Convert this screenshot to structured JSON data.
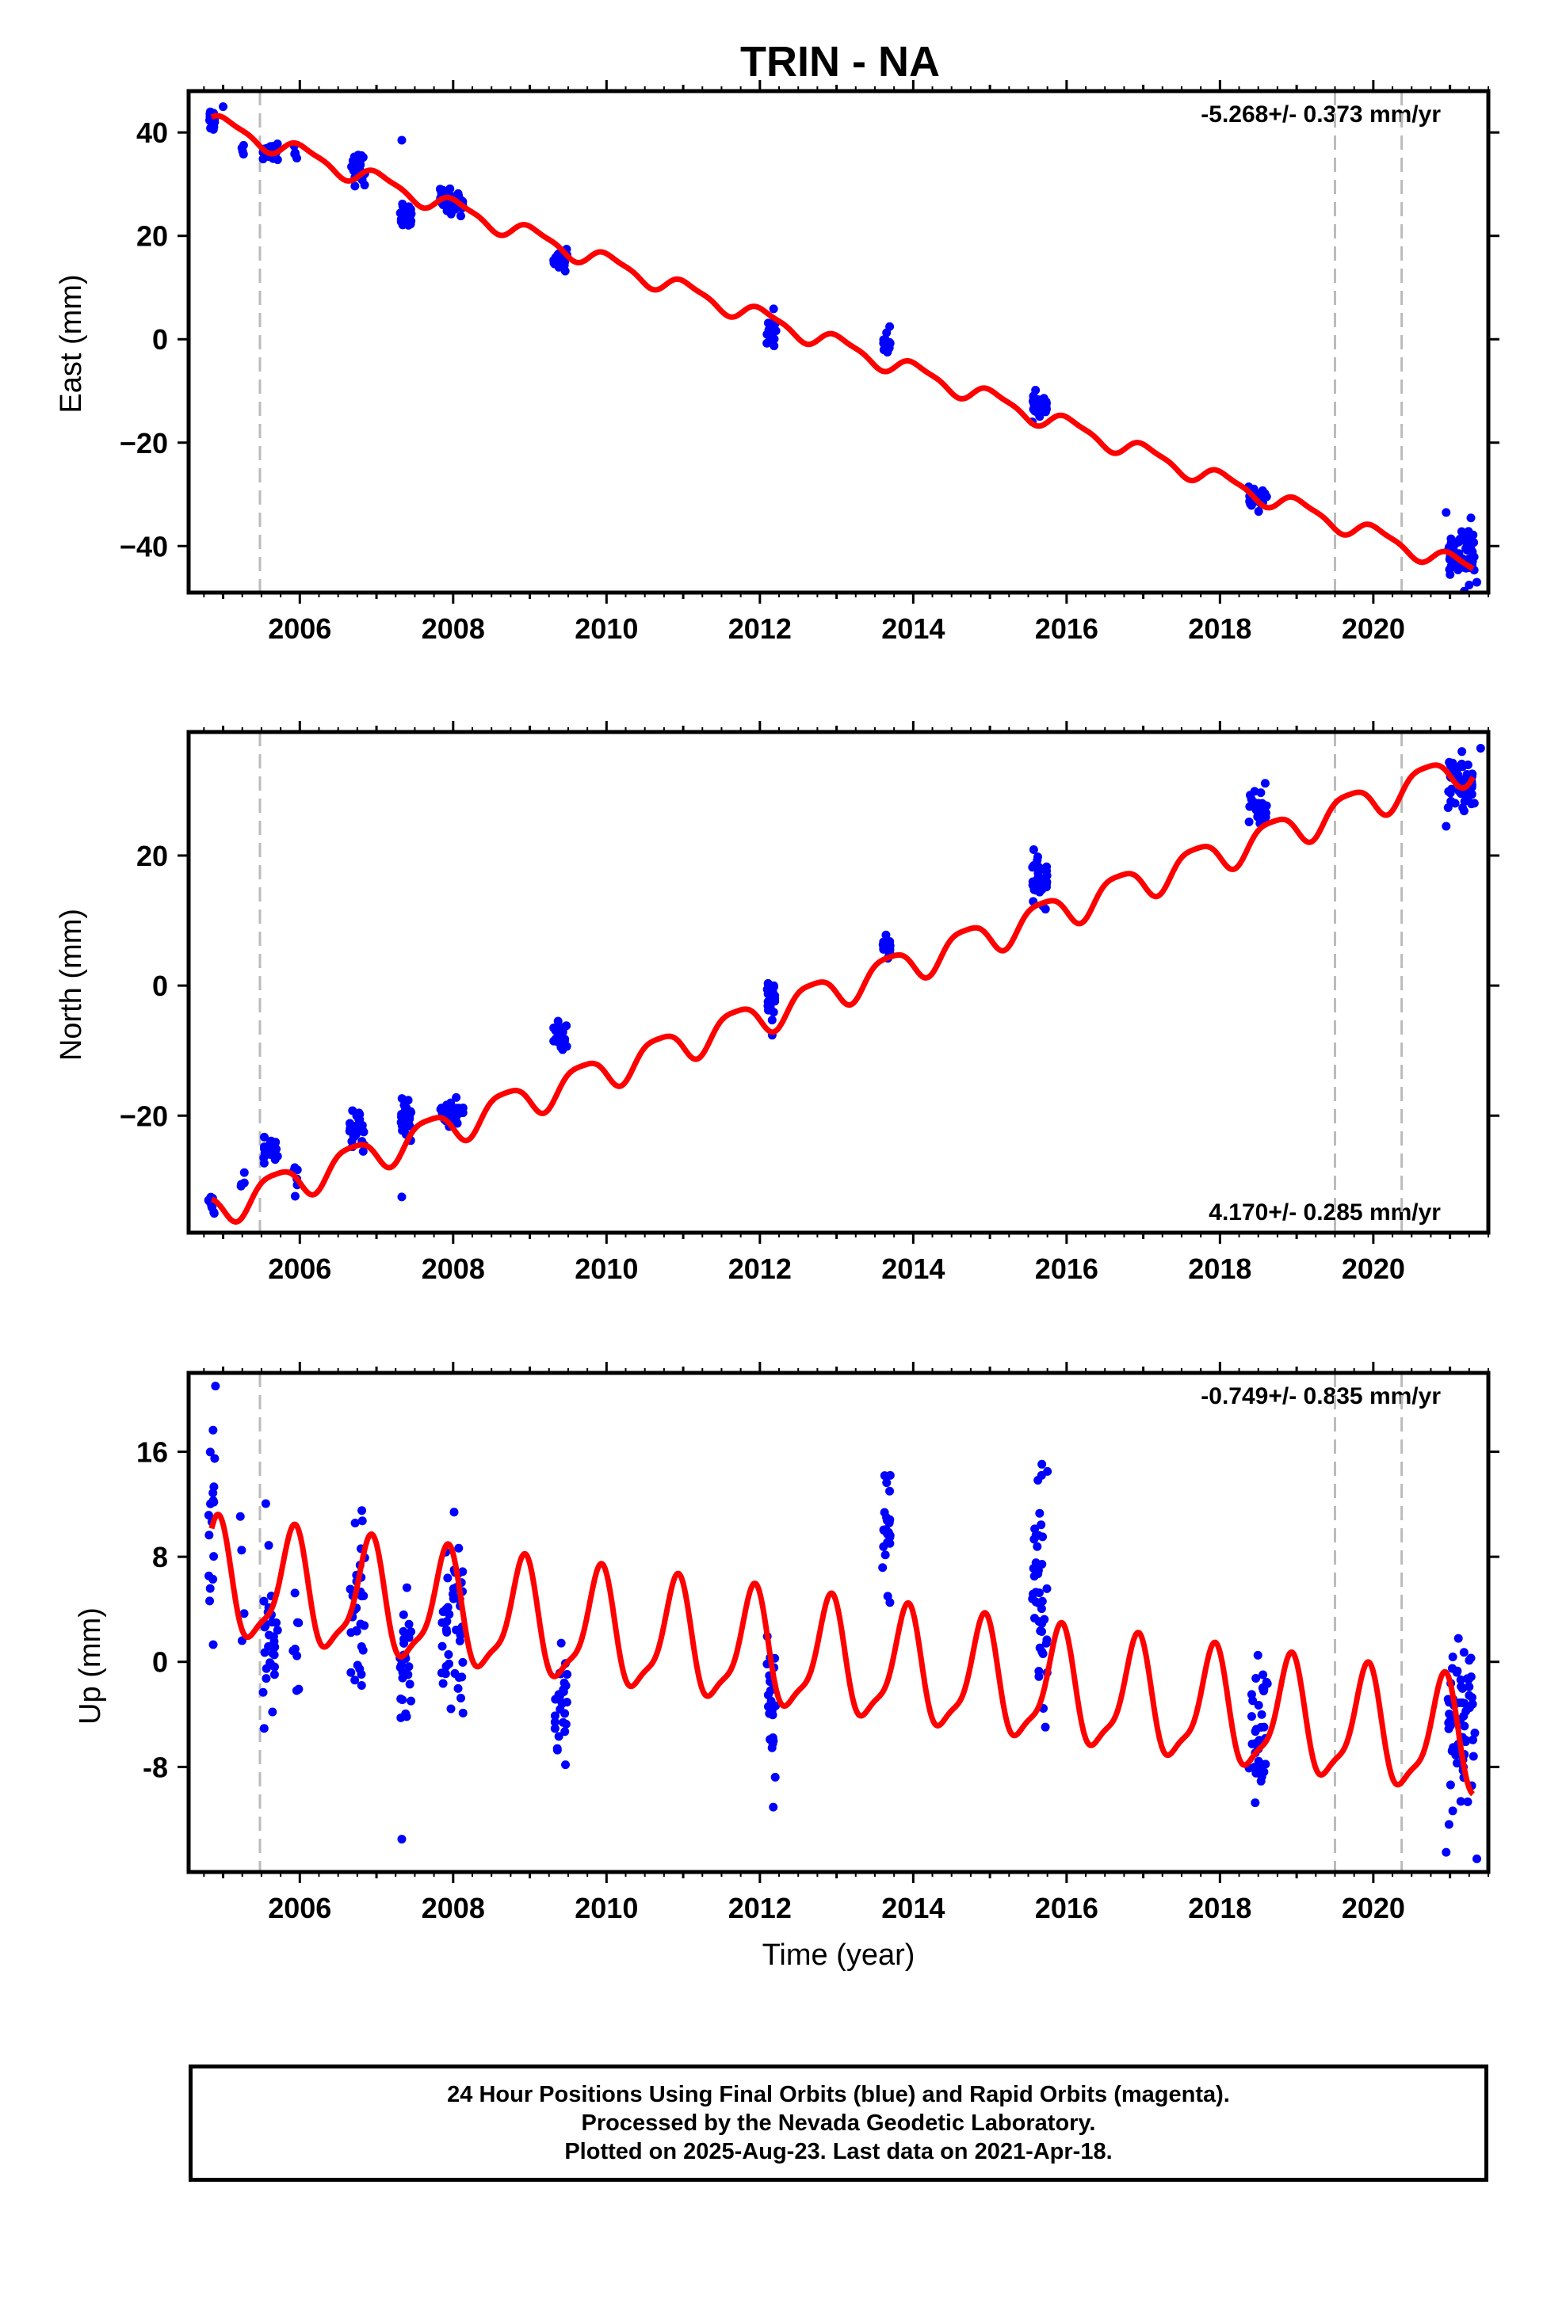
{
  "title": "TRIN - NA",
  "footer": {
    "line1": "24 Hour Positions Using Final Orbits (blue) and Rapid Orbits (magenta).",
    "line2": "Processed by the Nevada Geodetic Laboratory.",
    "line3": "Plotted on 2025-Aug-23. Last data on 2021-Apr-18."
  },
  "xlabel": "Time (year)",
  "colors": {
    "data": "#0000ff",
    "model": "#ff0000",
    "event_line": "#bbbbbb",
    "axes": "#000000"
  },
  "chart_data": [
    {
      "type": "scatter",
      "panel": "east",
      "ylabel": "East (mm)",
      "rate_label": "-5.268+/- 0.373 mm/yr",
      "xlim": [
        2004.55,
        2021.5
      ],
      "ylim": [
        -49,
        48
      ],
      "x_ticks": [
        2006,
        2008,
        2010,
        2012,
        2014,
        2016,
        2018,
        2020
      ],
      "x_tick_labels": [
        "2006",
        "2008",
        "2010",
        "2012",
        "2014",
        "2016",
        "2018",
        "2020"
      ],
      "y_ticks": [
        40,
        20,
        0,
        -20,
        -40
      ],
      "y_tick_labels": [
        "40",
        "20",
        "0",
        "−20",
        "−40"
      ],
      "event_lines": [
        2005.48,
        2019.5,
        2020.37
      ],
      "model": {
        "offset": 42.0,
        "t0": 2004.85,
        "rate": -5.268,
        "annual_amp": 1.7,
        "annual_phase": 0.3,
        "semiannual_amp": 0.5,
        "semiannual_phase": 1.1
      },
      "clusters": [
        {
          "t": 2004.85,
          "span": 0.08,
          "mean": 42.5,
          "sd": 1.2,
          "n": 14
        },
        {
          "t": 2005.25,
          "span": 0.05,
          "mean": 37.0,
          "sd": 0.8,
          "n": 4
        },
        {
          "t": 2005.62,
          "span": 0.2,
          "mean": 36.5,
          "sd": 1.0,
          "n": 26
        },
        {
          "t": 2005.95,
          "span": 0.06,
          "mean": 36.5,
          "sd": 0.8,
          "n": 5
        },
        {
          "t": 2006.75,
          "span": 0.2,
          "mean": 33.0,
          "sd": 1.4,
          "n": 30
        },
        {
          "t": 2007.38,
          "span": 0.15,
          "mean": 24.0,
          "sd": 1.3,
          "n": 26
        },
        {
          "t": 2007.98,
          "span": 0.3,
          "mean": 26.5,
          "sd": 1.2,
          "n": 42
        },
        {
          "t": 2009.4,
          "span": 0.18,
          "mean": 15.5,
          "sd": 1.0,
          "n": 26
        },
        {
          "t": 2012.15,
          "span": 0.12,
          "mean": 2.0,
          "sd": 1.8,
          "n": 22
        },
        {
          "t": 2013.65,
          "span": 0.1,
          "mean": -1.0,
          "sd": 1.2,
          "n": 16
        },
        {
          "t": 2015.65,
          "span": 0.2,
          "mean": -12.5,
          "sd": 1.0,
          "n": 40
        },
        {
          "t": 2018.5,
          "span": 0.25,
          "mean": -31.0,
          "sd": 0.9,
          "n": 34
        },
        {
          "t": 2021.15,
          "span": 0.35,
          "mean": -41.5,
          "sd": 2.5,
          "n": 60
        }
      ],
      "outliers": [
        {
          "x": 2005.0,
          "y": 45.0
        },
        {
          "x": 2007.33,
          "y": 38.5
        },
        {
          "x": 2020.95,
          "y": -33.5
        },
        {
          "x": 2021.35,
          "y": -47.0
        }
      ]
    },
    {
      "type": "scatter",
      "panel": "north",
      "ylabel": "North (mm)",
      "rate_label": "4.170+/- 0.285 mm/yr",
      "xlim": [
        2004.55,
        2021.5
      ],
      "ylim": [
        -38,
        39
      ],
      "x_ticks": [
        2006,
        2008,
        2010,
        2012,
        2014,
        2016,
        2018,
        2020
      ],
      "x_tick_labels": [
        "2006",
        "2008",
        "2010",
        "2012",
        "2014",
        "2016",
        "2018",
        "2020"
      ],
      "y_ticks": [
        20,
        0,
        -20
      ],
      "y_tick_labels": [
        "20",
        "0",
        "−20"
      ],
      "event_lines": [
        2005.48,
        2019.5,
        2020.37
      ],
      "model": {
        "offset": -34.5,
        "t0": 2004.85,
        "rate": 4.17,
        "annual_amp": 2.6,
        "annual_phase": 2.6,
        "semiannual_amp": 0.6,
        "semiannual_phase": 0.5
      },
      "clusters": [
        {
          "t": 2004.85,
          "span": 0.08,
          "mean": -34.0,
          "sd": 1.0,
          "n": 12
        },
        {
          "t": 2005.25,
          "span": 0.06,
          "mean": -30.0,
          "sd": 0.8,
          "n": 4
        },
        {
          "t": 2005.62,
          "span": 0.2,
          "mean": -25.5,
          "sd": 1.0,
          "n": 24
        },
        {
          "t": 2005.95,
          "span": 0.06,
          "mean": -29.5,
          "sd": 1.2,
          "n": 6
        },
        {
          "t": 2006.75,
          "span": 0.2,
          "mean": -22.5,
          "sd": 1.4,
          "n": 28
        },
        {
          "t": 2007.38,
          "span": 0.15,
          "mean": -20.5,
          "sd": 1.3,
          "n": 24
        },
        {
          "t": 2007.98,
          "span": 0.3,
          "mean": -19.5,
          "sd": 1.2,
          "n": 40
        },
        {
          "t": 2009.4,
          "span": 0.18,
          "mean": -8.0,
          "sd": 1.2,
          "n": 26
        },
        {
          "t": 2012.15,
          "span": 0.12,
          "mean": -2.5,
          "sd": 1.8,
          "n": 20
        },
        {
          "t": 2013.65,
          "span": 0.1,
          "mean": 6.0,
          "sd": 1.2,
          "n": 18
        },
        {
          "t": 2015.65,
          "span": 0.2,
          "mean": 16.0,
          "sd": 1.6,
          "n": 40
        },
        {
          "t": 2018.5,
          "span": 0.25,
          "mean": 27.5,
          "sd": 1.5,
          "n": 30
        },
        {
          "t": 2021.15,
          "span": 0.35,
          "mean": 31.0,
          "sd": 2.0,
          "n": 60
        }
      ],
      "outliers": [
        {
          "x": 2007.33,
          "y": -32.5
        },
        {
          "x": 2020.95,
          "y": 24.5
        },
        {
          "x": 2021.4,
          "y": 36.5
        }
      ]
    },
    {
      "type": "scatter",
      "panel": "up",
      "ylabel": "Up (mm)",
      "rate_label": "-0.749+/- 0.835 mm/yr",
      "xlim": [
        2004.55,
        2021.5
      ],
      "ylim": [
        -16,
        22
      ],
      "x_ticks": [
        2006,
        2008,
        2010,
        2012,
        2014,
        2016,
        2018,
        2020
      ],
      "x_tick_labels": [
        "2006",
        "2008",
        "2010",
        "2012",
        "2014",
        "2016",
        "2018",
        "2020"
      ],
      "y_ticks": [
        16,
        8,
        0,
        -8
      ],
      "y_tick_labels": [
        "16",
        "8",
        "0",
        "-8"
      ],
      "event_lines": [
        2005.48,
        2019.5,
        2020.37
      ],
      "model": {
        "offset": 6.0,
        "t0": 2004.85,
        "rate": -0.749,
        "annual_amp": 4.2,
        "annual_phase": 1.2,
        "semiannual_amp": 1.2,
        "semiannual_phase": 0.2
      },
      "clusters": [
        {
          "t": 2004.85,
          "span": 0.08,
          "mean": 11.0,
          "sd": 4.0,
          "n": 18
        },
        {
          "t": 2005.25,
          "span": 0.08,
          "mean": 5.0,
          "sd": 4.0,
          "n": 4
        },
        {
          "t": 2005.62,
          "span": 0.2,
          "mean": 1.0,
          "sd": 3.5,
          "n": 30
        },
        {
          "t": 2005.95,
          "span": 0.08,
          "mean": 0.0,
          "sd": 3.5,
          "n": 8
        },
        {
          "t": 2006.75,
          "span": 0.2,
          "mean": 4.5,
          "sd": 3.0,
          "n": 32
        },
        {
          "t": 2007.38,
          "span": 0.15,
          "mean": -1.0,
          "sd": 3.0,
          "n": 26
        },
        {
          "t": 2007.98,
          "span": 0.3,
          "mean": 3.0,
          "sd": 3.3,
          "n": 46
        },
        {
          "t": 2009.4,
          "span": 0.18,
          "mean": -3.0,
          "sd": 2.8,
          "n": 28
        },
        {
          "t": 2012.15,
          "span": 0.12,
          "mean": -2.5,
          "sd": 3.0,
          "n": 26
        },
        {
          "t": 2013.65,
          "span": 0.1,
          "mean": 9.5,
          "sd": 2.5,
          "n": 24
        },
        {
          "t": 2015.65,
          "span": 0.2,
          "mean": 5.5,
          "sd": 4.0,
          "n": 44
        },
        {
          "t": 2018.5,
          "span": 0.25,
          "mean": -5.0,
          "sd": 3.0,
          "n": 40
        },
        {
          "t": 2021.15,
          "span": 0.35,
          "mean": -6.0,
          "sd": 3.5,
          "n": 70
        }
      ],
      "outliers": [
        {
          "x": 2004.9,
          "y": 21.0
        },
        {
          "x": 2007.33,
          "y": -13.5
        },
        {
          "x": 2020.95,
          "y": -14.5
        },
        {
          "x": 2021.35,
          "y": -15.0
        },
        {
          "x": 2015.75,
          "y": 14.5
        },
        {
          "x": 2013.7,
          "y": 14.2
        }
      ]
    }
  ]
}
